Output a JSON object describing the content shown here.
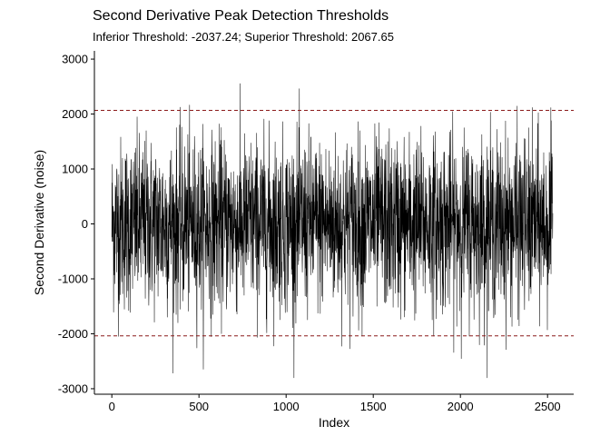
{
  "chart_data": {
    "type": "line",
    "title": "Second Derivative Peak Detection Thresholds",
    "subtitle": "Inferior Threshold: -2037.24; Superior Threshold: 2067.65",
    "xlabel": "Index",
    "ylabel": "Second Derivative (noise)",
    "xlim": [
      -100,
      2650
    ],
    "ylim": [
      -3100,
      3150
    ],
    "x_ticks": [
      0,
      500,
      1000,
      1500,
      2000,
      2500
    ],
    "y_ticks": [
      -3000,
      -2000,
      -1000,
      0,
      1000,
      2000,
      3000
    ],
    "thresholds": [
      {
        "name": "Inferior Threshold",
        "value": -2037.24,
        "color": "#8b1a1a",
        "style": "dashed"
      },
      {
        "name": "Superior Threshold",
        "value": 2067.65,
        "color": "#8b1a1a",
        "style": "dashed"
      }
    ],
    "series": [
      {
        "color": "#000000",
        "x_range": [
          0,
          2530
        ],
        "note_values_approx_range": [
          -2800,
          2980
        ]
      }
    ],
    "grid": false,
    "legend": "none"
  }
}
